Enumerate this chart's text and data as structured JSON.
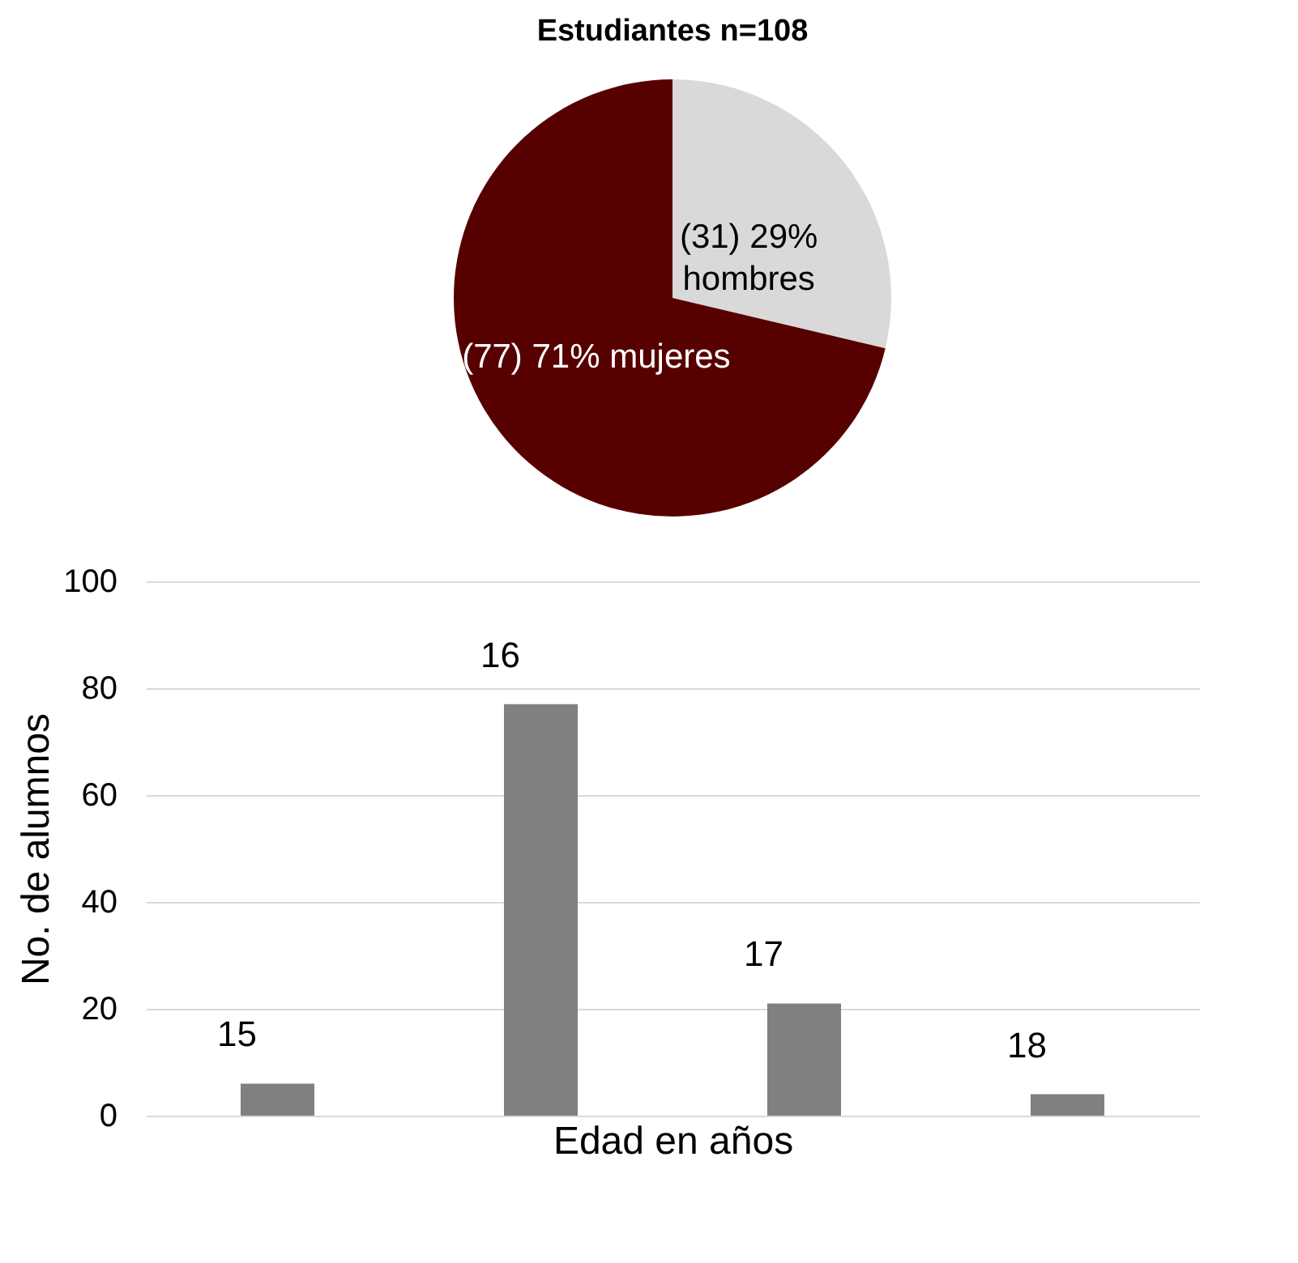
{
  "chart_data": [
    {
      "type": "pie",
      "title": "Estudiantes n=108",
      "categories": [
        "hombres",
        "mujeres"
      ],
      "values": [
        31,
        77
      ],
      "value_labels": [
        "(31) 29%",
        "(77) 71%"
      ],
      "colors": [
        "#d9d9d9",
        "#560000"
      ]
    },
    {
      "type": "bar",
      "categories": [
        "15",
        "16",
        "17",
        "18"
      ],
      "values": [
        6,
        77,
        21,
        4
      ],
      "color": "#808080",
      "xlabel": "Edad en años",
      "ylabel": "No. de alumnos",
      "ylim": [
        0,
        100
      ],
      "yticks": [
        0,
        20,
        40,
        60,
        80,
        100
      ],
      "grid": "y"
    }
  ]
}
